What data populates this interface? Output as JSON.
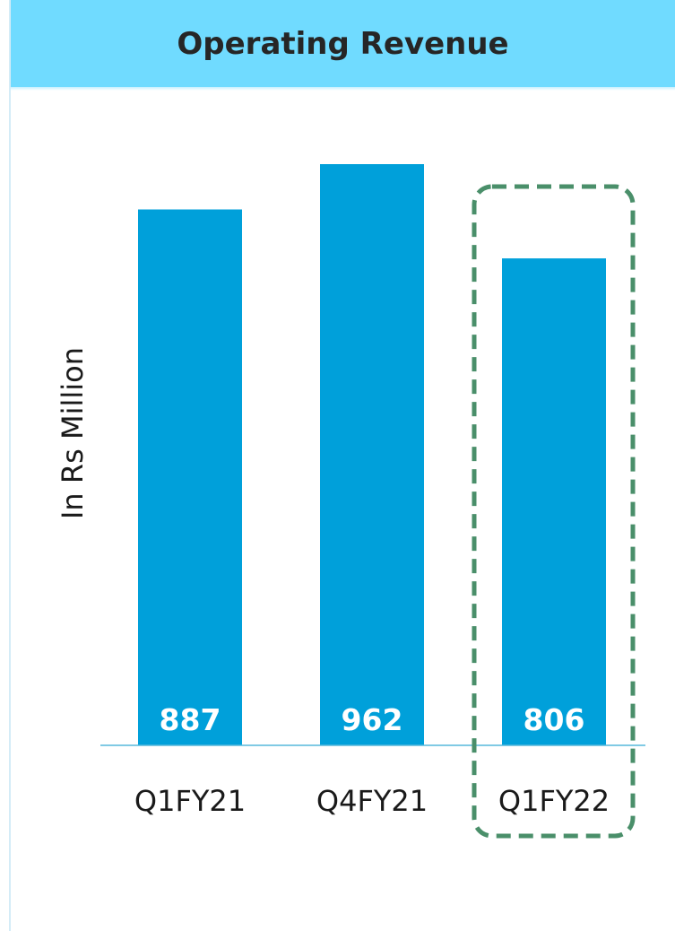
{
  "chart_data": {
    "type": "bar",
    "title": "Operating Revenue",
    "ylabel": "In Rs Million",
    "xlabel": "",
    "categories": [
      "Q1FY21",
      "Q4FY21",
      "Q1FY22"
    ],
    "values": [
      887,
      962,
      806
    ],
    "highlighted_category": "Q1FY22",
    "colors": {
      "bar": "#00a0da",
      "header_background": "#70dbff",
      "highlight_border": "#4a8f6a",
      "axis": "#56b8dc"
    }
  }
}
